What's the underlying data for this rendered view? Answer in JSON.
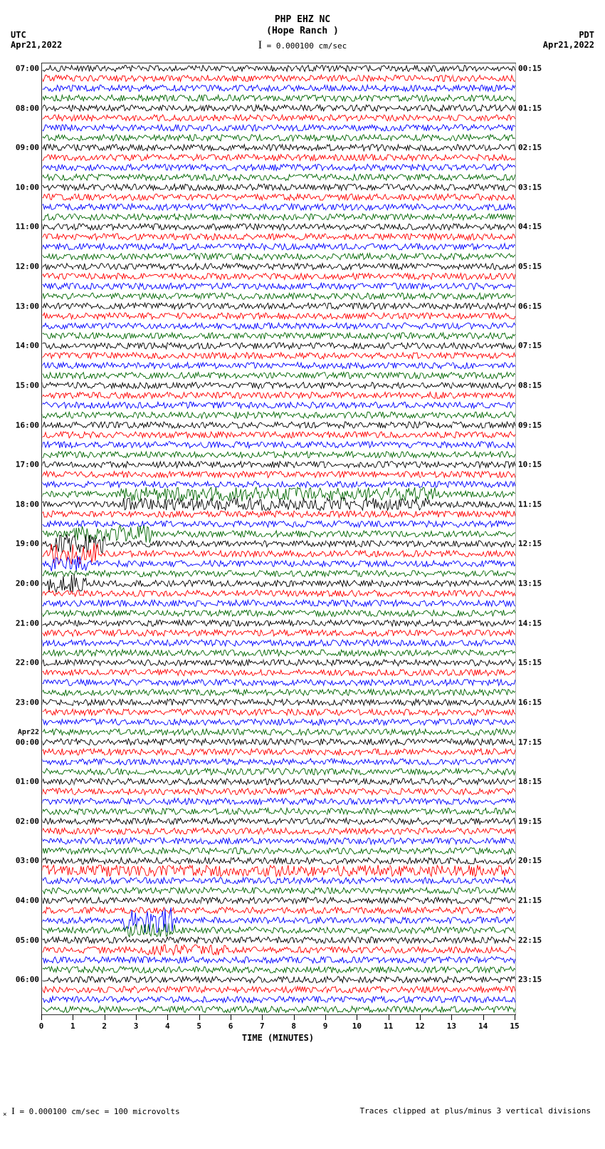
{
  "title_line1": "PHP EHZ NC",
  "title_line2": "(Hope Ranch )",
  "scale_text": "= 0.000100 cm/sec",
  "tz_left_label": "UTC",
  "tz_left_date": "Apr21,2022",
  "tz_right_label": "PDT",
  "tz_right_date": "Apr21,2022",
  "plot": {
    "type": "seismogram",
    "background_color": "#ffffff",
    "grid_color": "#ffffff",
    "n_traces": 96,
    "traces_per_hour": 4,
    "trace_colors": [
      "#000000",
      "#ff0000",
      "#0000ff",
      "#006600"
    ],
    "line_width": 0.9,
    "base_amplitude": 4.5,
    "xlim_minutes": [
      0,
      15
    ],
    "xtick_step": 1,
    "left_hour_labels": [
      {
        "trace": 0,
        "text": "07:00"
      },
      {
        "trace": 4,
        "text": "08:00"
      },
      {
        "trace": 8,
        "text": "09:00"
      },
      {
        "trace": 12,
        "text": "10:00"
      },
      {
        "trace": 16,
        "text": "11:00"
      },
      {
        "trace": 20,
        "text": "12:00"
      },
      {
        "trace": 24,
        "text": "13:00"
      },
      {
        "trace": 28,
        "text": "14:00"
      },
      {
        "trace": 32,
        "text": "15:00"
      },
      {
        "trace": 36,
        "text": "16:00"
      },
      {
        "trace": 40,
        "text": "17:00"
      },
      {
        "trace": 44,
        "text": "18:00"
      },
      {
        "trace": 48,
        "text": "19:00"
      },
      {
        "trace": 52,
        "text": "20:00"
      },
      {
        "trace": 56,
        "text": "21:00"
      },
      {
        "trace": 60,
        "text": "22:00"
      },
      {
        "trace": 64,
        "text": "23:00"
      },
      {
        "trace": 67,
        "text": "Apr22",
        "day": true
      },
      {
        "trace": 68,
        "text": "00:00"
      },
      {
        "trace": 72,
        "text": "01:00"
      },
      {
        "trace": 76,
        "text": "02:00"
      },
      {
        "trace": 80,
        "text": "03:00"
      },
      {
        "trace": 84,
        "text": "04:00"
      },
      {
        "trace": 88,
        "text": "05:00"
      },
      {
        "trace": 92,
        "text": "06:00"
      }
    ],
    "right_hour_labels": [
      {
        "trace": 0,
        "text": "00:15"
      },
      {
        "trace": 4,
        "text": "01:15"
      },
      {
        "trace": 8,
        "text": "02:15"
      },
      {
        "trace": 12,
        "text": "03:15"
      },
      {
        "trace": 16,
        "text": "04:15"
      },
      {
        "trace": 20,
        "text": "05:15"
      },
      {
        "trace": 24,
        "text": "06:15"
      },
      {
        "trace": 28,
        "text": "07:15"
      },
      {
        "trace": 32,
        "text": "08:15"
      },
      {
        "trace": 36,
        "text": "09:15"
      },
      {
        "trace": 40,
        "text": "10:15"
      },
      {
        "trace": 44,
        "text": "11:15"
      },
      {
        "trace": 48,
        "text": "12:15"
      },
      {
        "trace": 52,
        "text": "13:15"
      },
      {
        "trace": 56,
        "text": "14:15"
      },
      {
        "trace": 60,
        "text": "15:15"
      },
      {
        "trace": 64,
        "text": "16:15"
      },
      {
        "trace": 68,
        "text": "17:15"
      },
      {
        "trace": 72,
        "text": "18:15"
      },
      {
        "trace": 76,
        "text": "19:15"
      },
      {
        "trace": 80,
        "text": "20:15"
      },
      {
        "trace": 84,
        "text": "21:15"
      },
      {
        "trace": 88,
        "text": "22:15"
      },
      {
        "trace": 92,
        "text": "23:15"
      }
    ],
    "events": [
      {
        "trace": 43,
        "start_min": 2.5,
        "end_min": 12.5,
        "amp": 2.2
      },
      {
        "trace": 44,
        "start_min": 2.5,
        "end_min": 12.5,
        "amp": 2.0
      },
      {
        "trace": 47,
        "start_min": 1.0,
        "end_min": 3.5,
        "amp": 2.8
      },
      {
        "trace": 48,
        "start_min": 0.3,
        "end_min": 2.0,
        "amp": 3.0
      },
      {
        "trace": 49,
        "start_min": 0.3,
        "end_min": 1.8,
        "amp": 3.5
      },
      {
        "trace": 50,
        "start_min": 0.3,
        "end_min": 1.5,
        "amp": 2.5
      },
      {
        "trace": 52,
        "start_min": 0.2,
        "end_min": 1.4,
        "amp": 3.2
      },
      {
        "trace": 81,
        "start_min": 0.0,
        "end_min": 15.0,
        "amp": 1.8
      },
      {
        "trace": 86,
        "start_min": 2.6,
        "end_min": 4.2,
        "amp": 4.0
      },
      {
        "trace": 87,
        "start_min": 2.6,
        "end_min": 4.2,
        "amp": 2.2
      },
      {
        "trace": 89,
        "start_min": 3.0,
        "end_min": 6.0,
        "amp": 1.6
      }
    ]
  },
  "xlabel": "TIME (MINUTES)",
  "footer_left": "= 0.000100 cm/sec =    100 microvolts",
  "footer_right": "Traces clipped at plus/minus 3 vertical divisions"
}
